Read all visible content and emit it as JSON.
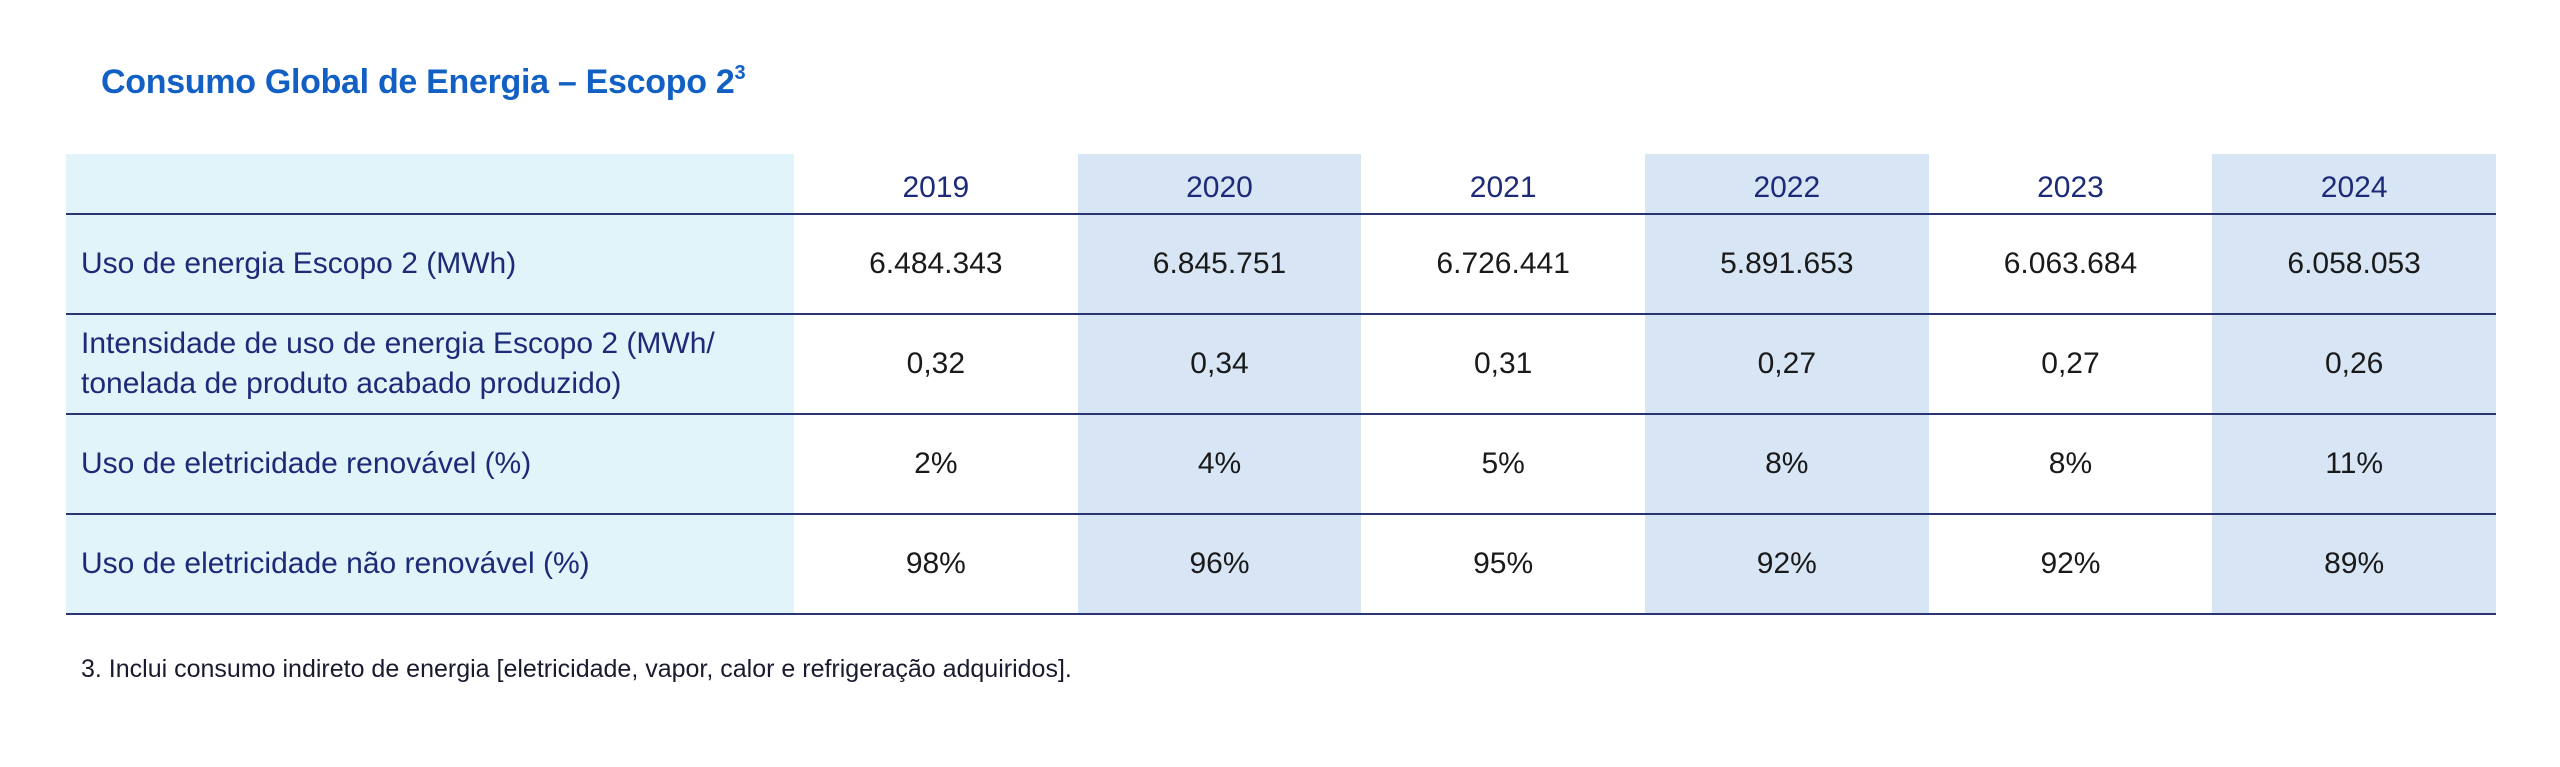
{
  "title": "Consumo Global de Energia – Escopo 2",
  "title_superscript": "3",
  "table": {
    "years": [
      "2019",
      "2020",
      "2021",
      "2022",
      "2023",
      "2024"
    ],
    "rows": [
      {
        "label": "Uso de energia Escopo 2 (MWh)",
        "values": [
          "6.484.343",
          "6.845.751",
          "6.726.441",
          "5.891.653",
          "6.063.684",
          "6.058.053"
        ]
      },
      {
        "label_line1": "Intensidade de uso de energia Escopo 2 (MWh/",
        "label_line2": "tonelada de produto acabado produzido)",
        "values": [
          "0,32",
          "0,34",
          "0,31",
          "0,27",
          "0,27",
          "0,26"
        ]
      },
      {
        "label": "Uso de eletricidade renovável (%)",
        "values": [
          "2%",
          "4%",
          "5%",
          "8%",
          "8%",
          "11%"
        ]
      },
      {
        "label": "Uso de eletricidade não renovável (%)",
        "values": [
          "98%",
          "96%",
          "95%",
          "92%",
          "92%",
          "89%"
        ]
      }
    ]
  },
  "footnote": "3. Inclui consumo indireto de energia [eletricidade, vapor, calor e refrigeração adquiridos].",
  "colors": {
    "title": "#1260c4",
    "label_bg": "#e0f4fa",
    "shaded_col_bg": "#d7e5f5",
    "header_text": "#1c2a78"
  }
}
